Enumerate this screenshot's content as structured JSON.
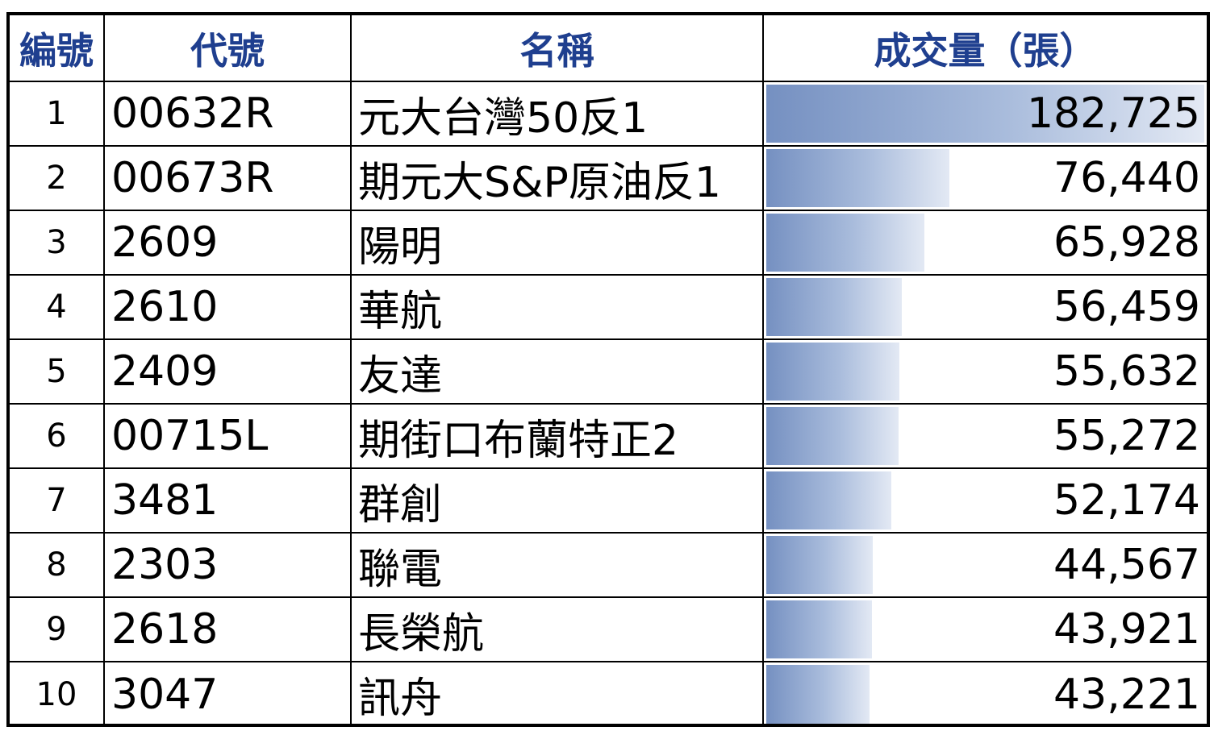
{
  "header": {
    "index": "編號",
    "code": "代號",
    "name": "名稱",
    "volume": "成交量（張）"
  },
  "bar_max": 182725,
  "rows": [
    {
      "index": "1",
      "code": "00632R",
      "name": "元大台灣50反1",
      "volume": "182,725",
      "volume_value": 182725
    },
    {
      "index": "2",
      "code": "00673R",
      "name": "期元大S&P原油反1",
      "volume": "76,440",
      "volume_value": 76440
    },
    {
      "index": "3",
      "code": "2609",
      "name": "陽明",
      "volume": "65,928",
      "volume_value": 65928
    },
    {
      "index": "4",
      "code": "2610",
      "name": "華航",
      "volume": "56,459",
      "volume_value": 56459
    },
    {
      "index": "5",
      "code": "2409",
      "name": "友達",
      "volume": "55,632",
      "volume_value": 55632
    },
    {
      "index": "6",
      "code": "00715L",
      "name": "期街口布蘭特正2",
      "volume": "55,272",
      "volume_value": 55272
    },
    {
      "index": "7",
      "code": "3481",
      "name": "群創",
      "volume": "52,174",
      "volume_value": 52174
    },
    {
      "index": "8",
      "code": "2303",
      "name": "聯電",
      "volume": "44,567",
      "volume_value": 44567
    },
    {
      "index": "9",
      "code": "2618",
      "name": "長榮航",
      "volume": "43,921",
      "volume_value": 43921
    },
    {
      "index": "10",
      "code": "3047",
      "name": "訊舟",
      "volume": "43,221",
      "volume_value": 43221
    }
  ],
  "colors": {
    "header_text": "#1f3f8f",
    "bar_start": "#7590c1",
    "bar_end": "#e3e9f4"
  }
}
